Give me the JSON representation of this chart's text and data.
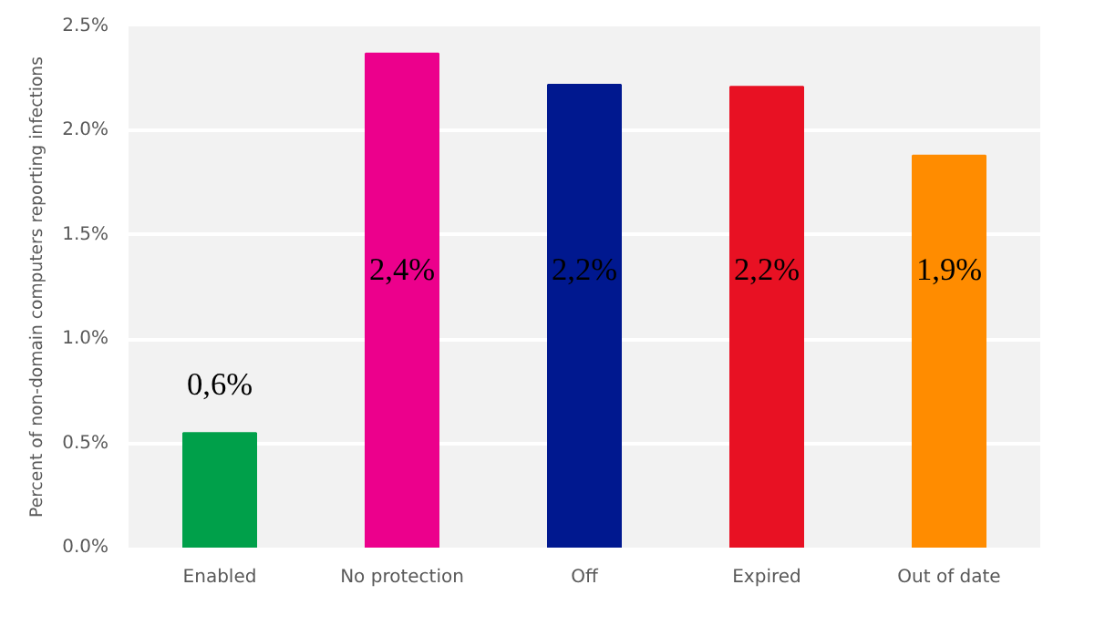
{
  "chart_data": {
    "type": "bar",
    "ylabel": "Percent of non-domain computers reporting infections",
    "categories": [
      "Enabled",
      "No protection",
      "Off",
      "Expired",
      "Out of date"
    ],
    "values": [
      0.55,
      2.37,
      2.22,
      2.21,
      1.88
    ],
    "colors": [
      "#00a04a",
      "#ec008c",
      "#00188f",
      "#e81123",
      "#ff8c00"
    ],
    "value_labels": [
      "0,6%",
      "2,4%",
      "2,2%",
      "2,2%",
      "1,9%"
    ],
    "ylim": [
      0,
      2.5
    ],
    "yticks": [
      {
        "value": 0,
        "label": "0.0%"
      },
      {
        "value": 0.5,
        "label": "0.5%"
      },
      {
        "value": 1,
        "label": "1.0%"
      },
      {
        "value": 1.5,
        "label": "1.5%"
      },
      {
        "value": 2,
        "label": "2.0%"
      },
      {
        "value": 2.5,
        "label": "2.5%"
      }
    ],
    "grid": "y"
  }
}
